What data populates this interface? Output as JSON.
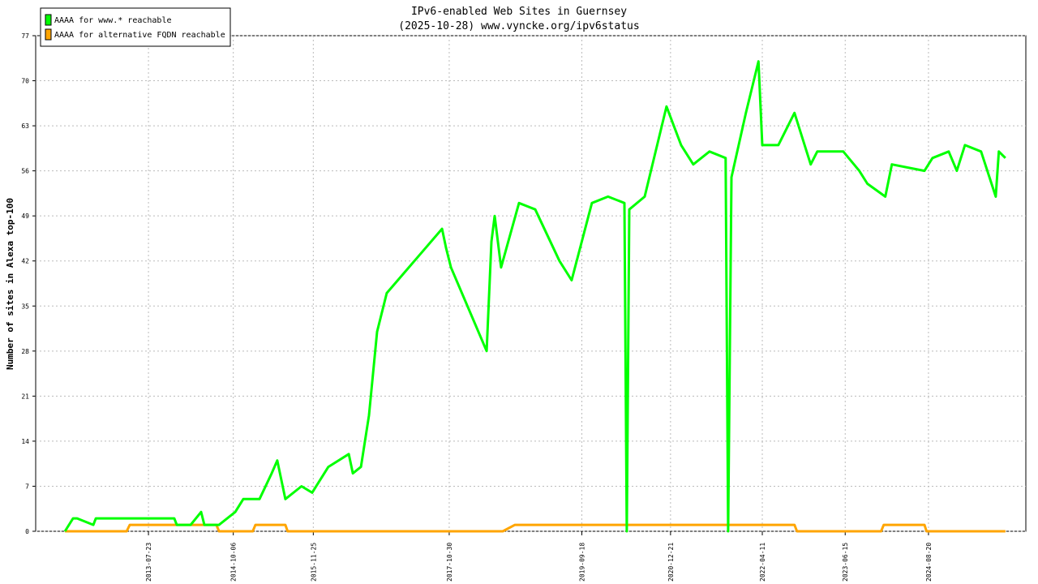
{
  "chart_data": {
    "type": "line",
    "title": "IPv6-enabled Web Sites in Guernsey",
    "subtitle": "(2025-10-28) www.vyncke.org/ipv6status",
    "y_label": "Number of sites in Alexa top-100",
    "xlim": [
      "2011-12-16",
      "2026-01-07"
    ],
    "xticks": [
      "2013-07-23",
      "2014-10-06",
      "2015-11-25",
      "2017-10-30",
      "2019-09-18",
      "2020-12-21",
      "2022-04-11",
      "2023-06-15",
      "2024-08-20"
    ],
    "ylim": [
      0,
      77
    ],
    "yticks": [
      0,
      7,
      14,
      21,
      28,
      35,
      42,
      49,
      56,
      63,
      70,
      77
    ],
    "grid": true,
    "legend": "top-left",
    "series": [
      {
        "name": "AAAA for www.* reachable",
        "color": "#00ff00",
        "x": [
          "2012-05-16",
          "2012-06-27",
          "2012-07-18",
          "2012-10-10",
          "2012-10-23",
          "2012-12-20",
          "2013-12-04",
          "2013-12-17",
          "2014-02-27",
          "2014-04-22",
          "2014-05-09",
          "2014-07-24",
          "2014-10-16",
          "2014-11-27",
          "2015-02-19",
          "2015-04-23",
          "2015-05-22",
          "2015-07-03",
          "2015-09-25",
          "2015-11-19",
          "2016-02-11",
          "2016-05-27",
          "2016-06-17",
          "2016-07-29",
          "2016-09-09",
          "2016-10-21",
          "2016-12-10",
          "2017-09-23",
          "2017-10-14",
          "2017-11-08",
          "2018-05-12",
          "2018-06-06",
          "2018-06-23",
          "2018-07-26",
          "2018-10-27",
          "2019-01-19",
          "2019-05-25",
          "2019-07-27",
          "2019-11-09",
          "2020-02-01",
          "2020-04-26",
          "2020-05-08",
          "2020-05-21",
          "2020-08-09",
          "2020-11-30",
          "2021-02-14",
          "2021-04-18",
          "2021-07-11",
          "2021-10-03",
          "2021-10-16",
          "2021-11-02",
          "2022-01-16",
          "2022-03-22",
          "2022-04-11",
          "2022-07-03",
          "2022-09-25",
          "2022-12-18",
          "2023-01-21",
          "2023-06-05",
          "2023-08-27",
          "2023-10-08",
          "2024-01-09",
          "2024-02-12",
          "2024-07-30",
          "2024-09-10",
          "2024-12-03",
          "2025-01-14",
          "2025-02-25",
          "2025-05-20",
          "2025-08-04",
          "2025-08-20",
          "2025-09-23"
        ],
        "values": [
          0,
          2,
          2,
          1,
          2,
          2,
          2,
          1,
          1,
          3,
          1,
          1,
          3,
          5,
          5,
          9,
          11,
          5,
          7,
          6,
          10,
          12,
          9,
          10,
          18,
          31,
          37,
          47,
          44,
          41,
          28,
          45,
          49,
          41,
          51,
          50,
          42,
          39,
          51,
          52,
          51,
          0,
          50,
          52,
          66,
          60,
          57,
          59,
          58,
          0,
          55,
          65,
          73,
          60,
          60,
          65,
          57,
          59,
          59,
          56,
          54,
          52,
          57,
          56,
          58,
          59,
          56,
          60,
          59,
          52,
          59,
          58
        ]
      },
      {
        "name": "AAAA for alternative FQDN reachable",
        "color": "#ffa500",
        "x": [
          "2012-05-16",
          "2013-04-01",
          "2013-04-17",
          "2014-07-10",
          "2014-07-24",
          "2015-01-15",
          "2015-01-29",
          "2015-07-03",
          "2015-07-15",
          "2018-08-04",
          "2018-10-06",
          "2022-09-25",
          "2022-10-08",
          "2023-12-18",
          "2024-01-01",
          "2024-07-30",
          "2024-08-10",
          "2025-09-23"
        ],
        "values": [
          0,
          0,
          1,
          1,
          0,
          0,
          1,
          1,
          0,
          0,
          1,
          1,
          0,
          0,
          1,
          1,
          0,
          0
        ]
      }
    ]
  }
}
